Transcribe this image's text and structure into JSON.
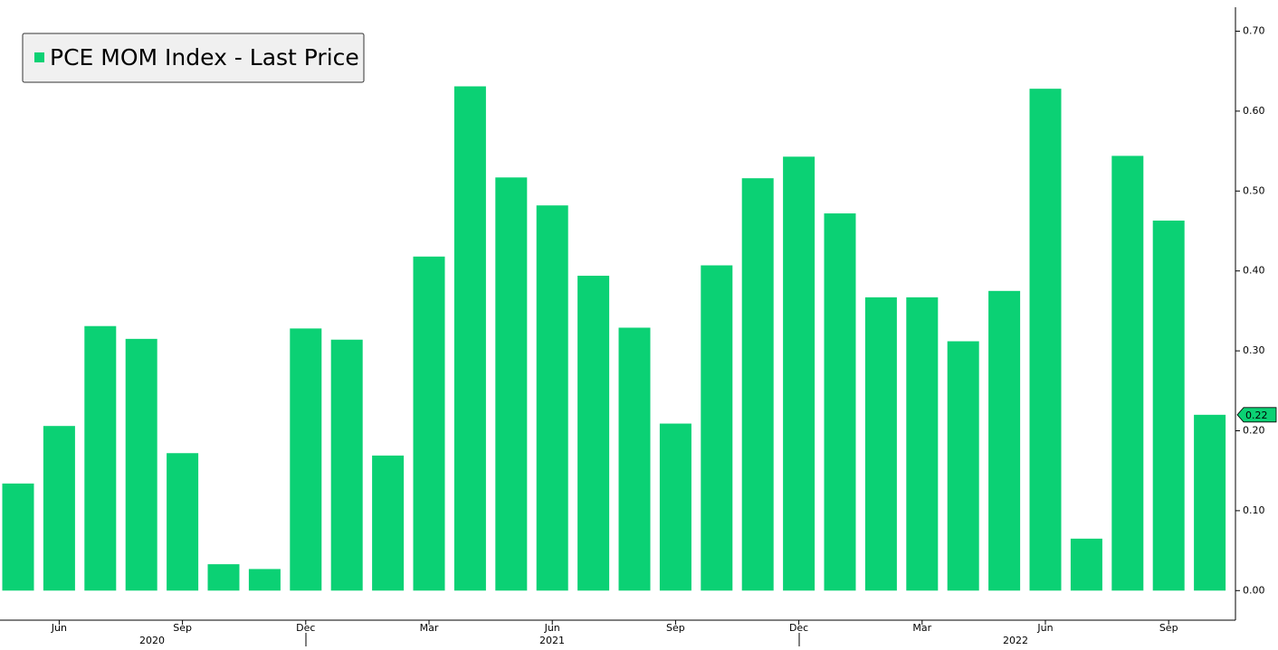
{
  "chart_data": {
    "type": "bar",
    "legend": "PCE MOM Index - Last Price",
    "color": "#0bd174",
    "categories": [
      null,
      "Jun",
      null,
      null,
      "Sep",
      null,
      null,
      "Dec",
      null,
      null,
      "Mar",
      null,
      null,
      "Jun",
      null,
      null,
      "Sep",
      null,
      null,
      "Dec",
      null,
      null,
      "Mar",
      null,
      null,
      "Jun",
      null,
      null,
      "Sep",
      null
    ],
    "year_labels": [
      "2020",
      "2021",
      "2022"
    ],
    "values": [
      0.134,
      0.206,
      0.331,
      0.315,
      0.172,
      0.033,
      0.027,
      0.328,
      0.314,
      0.169,
      0.418,
      0.631,
      0.517,
      0.482,
      0.394,
      0.329,
      0.209,
      0.407,
      0.516,
      0.543,
      0.472,
      0.367,
      0.367,
      0.312,
      0.375,
      0.628,
      0.065,
      0.544,
      0.463,
      0.22
    ],
    "ylim": [
      -0.037,
      0.73
    ],
    "yticks": [
      {
        "value": 0,
        "label": "0.00"
      },
      {
        "value": 0.1,
        "label": "0.10"
      },
      {
        "value": 0.2,
        "label": "0.20"
      },
      {
        "value": 0.3,
        "label": "0.30"
      },
      {
        "value": 0.4,
        "label": "0.40"
      },
      {
        "value": 0.5,
        "label": "0.50"
      },
      {
        "value": 0.6,
        "label": "0.60"
      },
      {
        "value": 0.7,
        "label": "0.70"
      }
    ],
    "y_axis_side": "right"
  }
}
